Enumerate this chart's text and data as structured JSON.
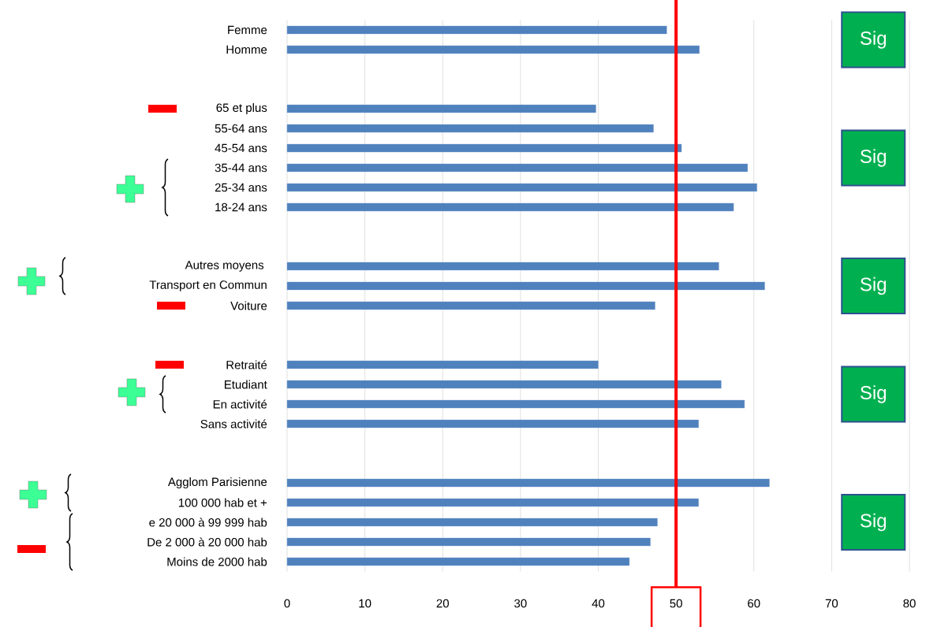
{
  "chart_data": {
    "type": "bar",
    "orientation": "horizontal",
    "categories": [
      "Femme",
      "Homme",
      null,
      null,
      "65 et plus",
      "55-64 ans",
      "45-54 ans",
      "35-44 ans",
      "25-34 ans",
      "18-24 ans",
      null,
      null,
      "Autres moyens ",
      "Transport en Commun",
      "Voiture",
      null,
      null,
      "Retraité",
      "Etudiant",
      "En activité",
      "Sans activité",
      null,
      null,
      "Agglom Parisienne",
      "100 000 hab et +",
      "e 20 000 à 99 999 hab",
      "De 2 000 à 20 000 hab",
      "Moins de 2000 hab"
    ],
    "values": [
      48.8,
      53.0,
      null,
      null,
      39.7,
      47.1,
      50.7,
      59.2,
      60.4,
      57.4,
      null,
      null,
      55.5,
      61.4,
      47.3,
      null,
      null,
      40.0,
      55.8,
      58.8,
      52.9,
      null,
      null,
      62.0,
      52.9,
      47.6,
      46.7,
      44.0
    ],
    "color": "#4f81bd",
    "xlim": [
      0,
      80
    ],
    "xticks": [
      0,
      10,
      20,
      30,
      40,
      50,
      60,
      70,
      80
    ],
    "grid": "x",
    "ref_lines": [
      {
        "axis": "x",
        "value": 50,
        "color": "#ff0000"
      }
    ],
    "annotations": [
      "Sig",
      "Sig",
      "Sig",
      "Sig",
      "Sig"
    ]
  }
}
